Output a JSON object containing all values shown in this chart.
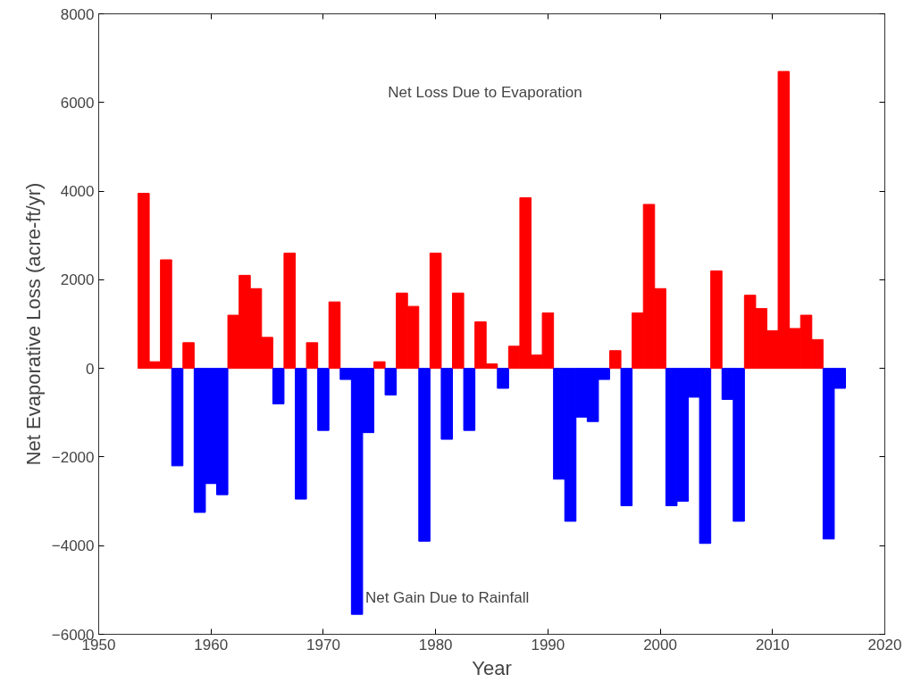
{
  "chart_data": {
    "type": "bar",
    "xlabel": "Year",
    "ylabel": "Net Evaporative Loss (acre-ft/yr)",
    "annotations": [
      "Net Loss Due to Evaporation",
      "Net Gain Due to Rainfall"
    ],
    "x": [
      1954,
      1955,
      1956,
      1957,
      1958,
      1959,
      1960,
      1961,
      1962,
      1963,
      1964,
      1965,
      1966,
      1967,
      1968,
      1969,
      1970,
      1971,
      1972,
      1973,
      1974,
      1975,
      1976,
      1977,
      1978,
      1979,
      1980,
      1981,
      1982,
      1983,
      1984,
      1985,
      1986,
      1987,
      1988,
      1989,
      1990,
      1991,
      1992,
      1993,
      1994,
      1995,
      1996,
      1997,
      1998,
      1999,
      2000,
      2001,
      2002,
      2003,
      2004,
      2005,
      2006,
      2007,
      2008,
      2009,
      2010,
      2011,
      2012,
      2013,
      2014,
      2015,
      2016
    ],
    "values": [
      3950,
      150,
      2450,
      -2200,
      580,
      -3250,
      -2600,
      -2850,
      1200,
      2100,
      1800,
      700,
      -800,
      2600,
      -2950,
      580,
      -1400,
      1500,
      -250,
      -5550,
      -1450,
      150,
      -600,
      1700,
      1400,
      -3900,
      2600,
      -1600,
      1700,
      -1400,
      1050,
      100,
      -450,
      500,
      3850,
      300,
      1250,
      -2500,
      -3450,
      -1100,
      -1200,
      -250,
      400,
      -3100,
      1250,
      3700,
      1800,
      -3100,
      -3000,
      -650,
      -3950,
      2200,
      -700,
      -3450,
      1650,
      1350,
      850,
      6700,
      900,
      1200,
      650,
      -3850,
      -450
    ],
    "colors": [
      "#ff0000",
      "#ff0000",
      "#ff0000",
      "#0000ff",
      "#ff0000",
      "#0000ff",
      "#0000ff",
      "#0000ff",
      "#ff0000",
      "#ff0000",
      "#ff0000",
      "#ff0000",
      "#0000ff",
      "#ff0000",
      "#0000ff",
      "#ff0000",
      "#0000ff",
      "#ff0000",
      "#0000ff",
      "#0000ff",
      "#0000ff",
      "#ff0000",
      "#0000ff",
      "#ff0000",
      "#ff0000",
      "#0000ff",
      "#ff0000",
      "#0000ff",
      "#ff0000",
      "#0000ff",
      "#ff0000",
      "#ff0000",
      "#0000ff",
      "#ff0000",
      "#ff0000",
      "#ff0000",
      "#ff0000",
      "#0000ff",
      "#0000ff",
      "#0000ff",
      "#0000ff",
      "#0000ff",
      "#ff0000",
      "#0000ff",
      "#ff0000",
      "#ff0000",
      "#ff0000",
      "#0000ff",
      "#0000ff",
      "#0000ff",
      "#0000ff",
      "#ff0000",
      "#0000ff",
      "#0000ff",
      "#ff0000",
      "#ff0000",
      "#ff0000",
      "#ff0000",
      "#ff0000",
      "#ff0000",
      "#ff0000",
      "#0000ff",
      "#0000ff"
    ],
    "xlim": [
      1950,
      2020
    ],
    "xticks": [
      1950,
      1960,
      1970,
      1980,
      1990,
      2000,
      2010,
      2020
    ],
    "ylim": [
      -6000,
      8000
    ],
    "yticks": [
      -6000,
      -4000,
      -2000,
      0,
      2000,
      4000,
      6000,
      8000
    ],
    "grid": false
  }
}
